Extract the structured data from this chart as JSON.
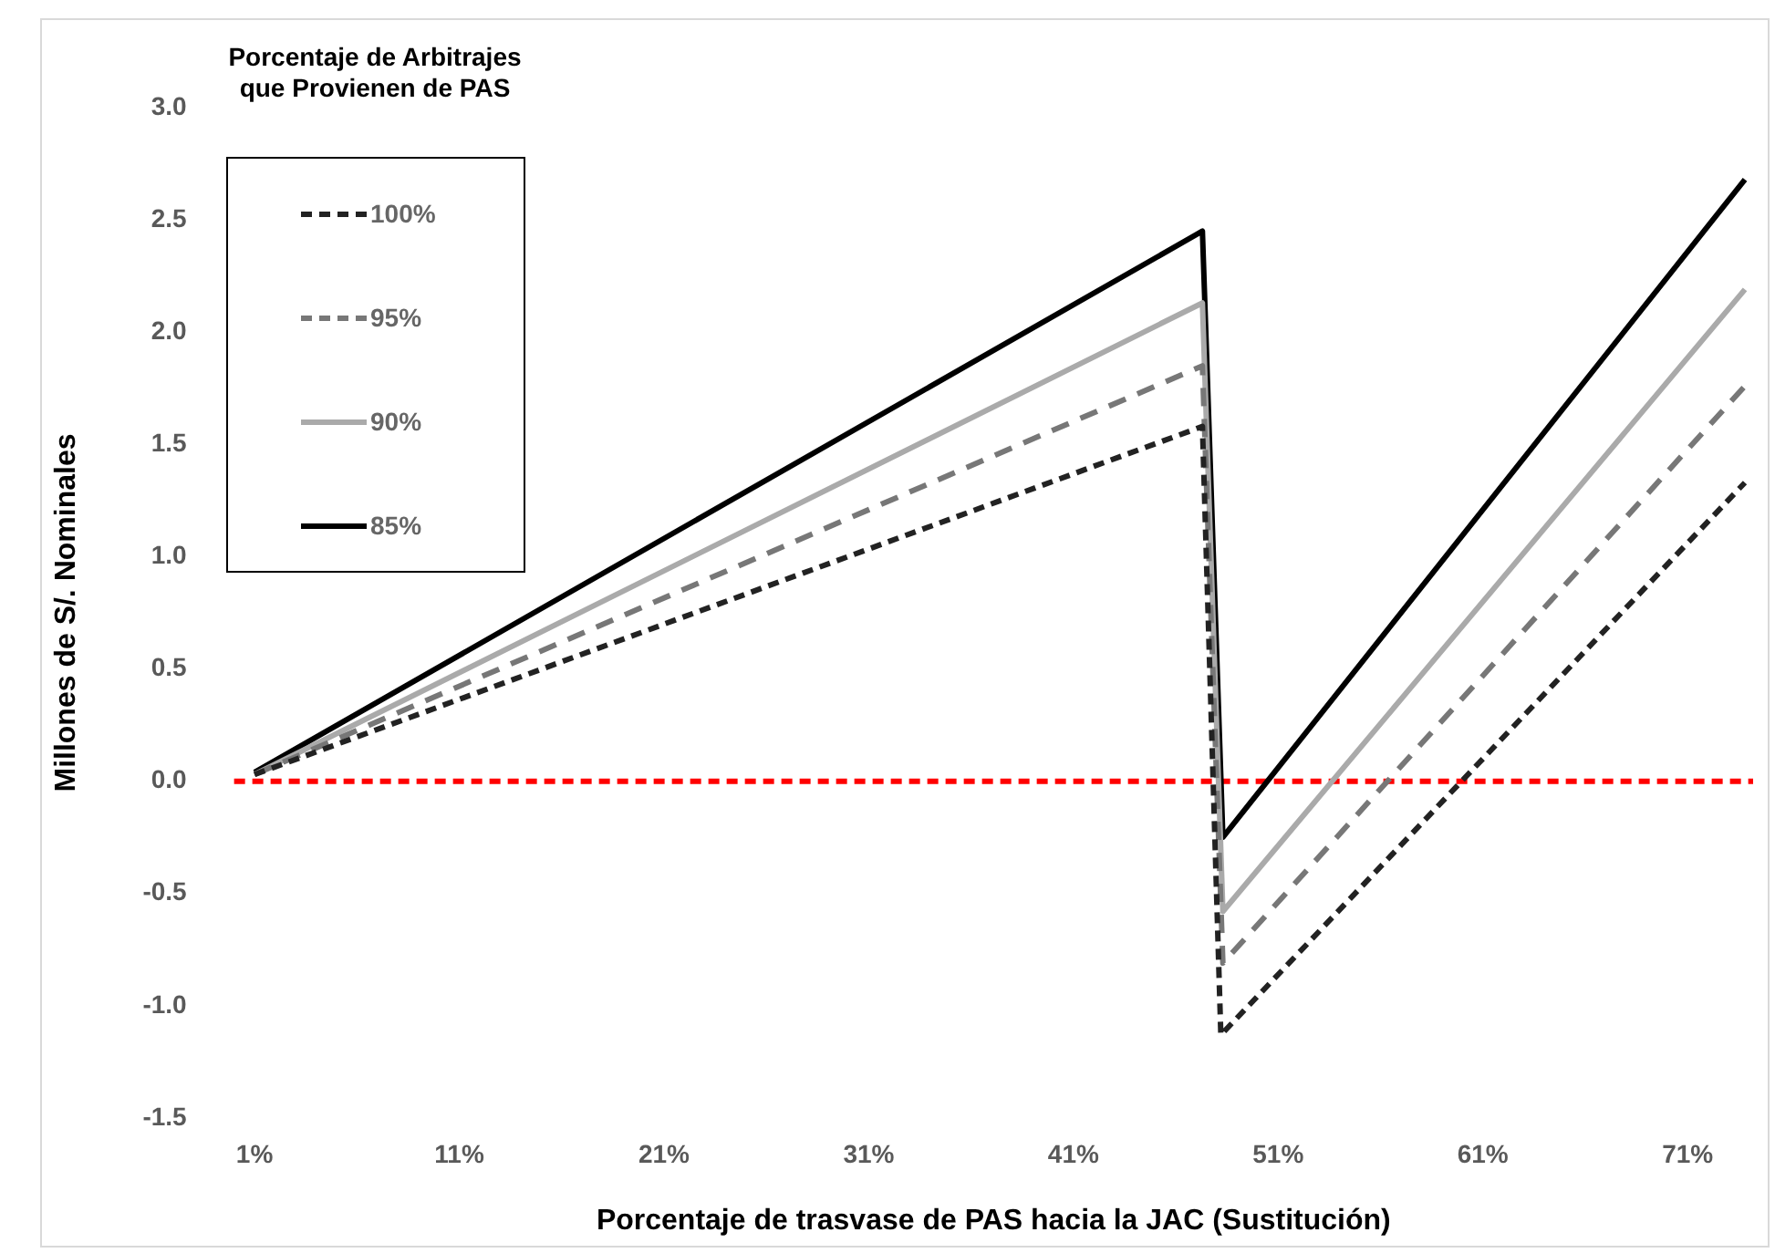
{
  "chart_data": {
    "type": "line",
    "xlabel": "Porcentaje de trasvase de PAS hacia la JAC (Sustitución)",
    "ylabel": "Millones de S/. Nominales",
    "legend_title": "Porcentaje de Arbitrajes que Provienen de PAS",
    "legend": "top left",
    "marker": "none",
    "grid": false,
    "xlim": [
      0,
      74.2
    ],
    "xticks": [
      {
        "value": 1,
        "label": "1%"
      },
      {
        "value": 11,
        "label": "11%"
      },
      {
        "value": 21,
        "label": "21%"
      },
      {
        "value": 31,
        "label": "31%"
      },
      {
        "value": 41,
        "label": "41%"
      },
      {
        "value": 51,
        "label": "51%"
      },
      {
        "value": 61,
        "label": "61%"
      },
      {
        "value": 71,
        "label": "71%"
      }
    ],
    "ylim": [
      -1.5,
      3.0
    ],
    "yticks": [
      {
        "value": -1.5,
        "label": "-1.5"
      },
      {
        "value": -1,
        "label": "-1.0"
      },
      {
        "value": -0.5,
        "label": "-0.5"
      },
      {
        "value": 0,
        "label": "0.0"
      },
      {
        "value": 0.5,
        "label": "0.5"
      },
      {
        "value": 1,
        "label": "1.0"
      },
      {
        "value": 1.5,
        "label": "1.5"
      },
      {
        "value": 2,
        "label": "2.0"
      },
      {
        "value": 2.5,
        "label": "2.5"
      },
      {
        "value": 3,
        "label": "3.0"
      }
    ],
    "series": [
      {
        "name": "100%",
        "color": "#222222",
        "line_style": "dashed",
        "x": [
          1,
          47.3,
          48.2,
          73.8
        ],
        "values": [
          0.03,
          1.58,
          -1.13,
          1.33
        ]
      },
      {
        "name": "95%",
        "color": "#777777",
        "line_style": "dashed",
        "x": [
          1,
          47.3,
          48.3,
          73.8
        ],
        "values": [
          0.03,
          1.85,
          -0.81,
          1.76
        ]
      },
      {
        "name": "90%",
        "color": "#aaaaaa",
        "line_style": "solid",
        "x": [
          1,
          47.3,
          48.3,
          73.8
        ],
        "values": [
          0.03,
          2.13,
          -0.58,
          2.19
        ]
      },
      {
        "name": "85%",
        "color": "#000000",
        "line_style": "solid",
        "x": [
          1,
          47.3,
          48.3,
          73.8
        ],
        "values": [
          0.04,
          2.45,
          -0.25,
          2.68
        ]
      }
    ],
    "ref_lines": [
      {
        "axis": "y",
        "value": 0,
        "color": "#ff0000",
        "line_style": "dashed"
      }
    ]
  }
}
